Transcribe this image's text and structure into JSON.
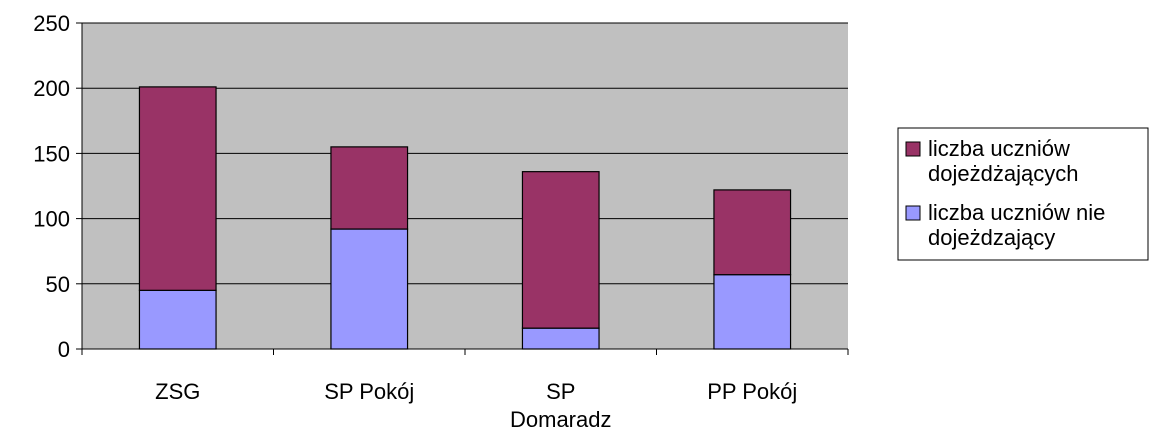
{
  "chart_data": {
    "type": "bar",
    "stacked": true,
    "categories": [
      "ZSG",
      "SP Pokój",
      "SP Domaradz",
      "PP Pokój"
    ],
    "series": [
      {
        "name": "liczba uczniów nie dojeżdzający",
        "color": "#9999ff",
        "values": [
          45,
          92,
          16,
          57
        ]
      },
      {
        "name": "liczba uczniów dojeżdżających",
        "color": "#993366",
        "values": [
          156,
          63,
          120,
          65
        ]
      }
    ],
    "ylim": [
      0,
      250
    ],
    "yticks": [
      0,
      50,
      100,
      150,
      200,
      250
    ],
    "grid": true,
    "legend": "right"
  }
}
